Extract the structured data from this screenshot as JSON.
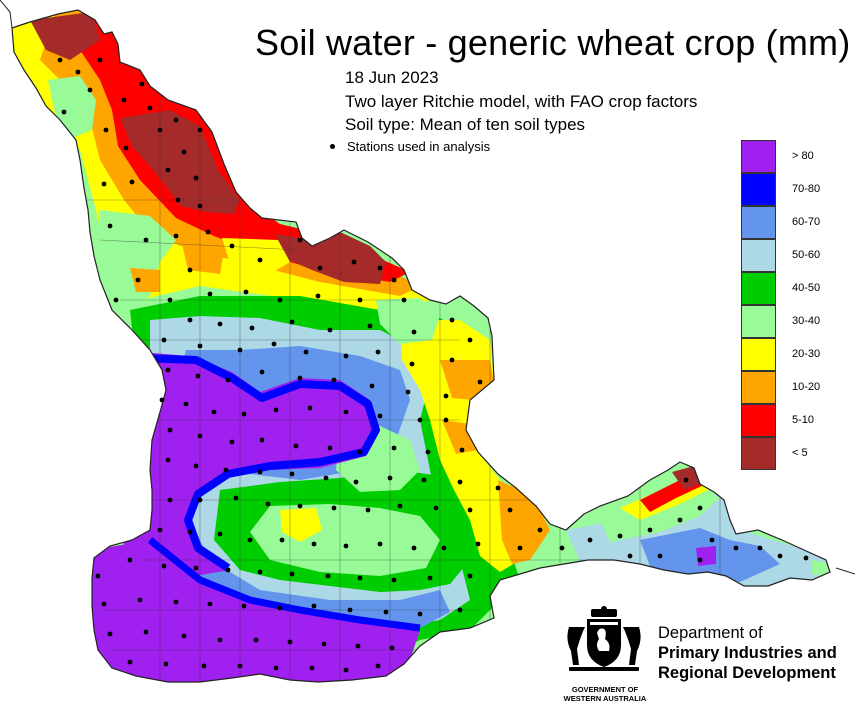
{
  "title": "Soil water - generic wheat crop (mm)",
  "date": "18 Jun 2023",
  "model": "Two layer Ritchie model, with FAO crop factors",
  "soil_type": "Soil type: Mean of ten soil types",
  "stations_note": "Stations used in analysis",
  "legend": [
    {
      "label": "> 80",
      "color": "#a020f0"
    },
    {
      "label": "70-80",
      "color": "#0000ff"
    },
    {
      "label": "60-70",
      "color": "#6495ed"
    },
    {
      "label": "50-60",
      "color": "#add8e6"
    },
    {
      "label": "40-50",
      "color": "#00cd00"
    },
    {
      "label": "30-40",
      "color": "#98fb98"
    },
    {
      "label": "20-30",
      "color": "#ffff00"
    },
    {
      "label": "10-20",
      "color": "#ffa500"
    },
    {
      "label": "5-10",
      "color": "#ff0000"
    },
    {
      "label": "< 5",
      "color": "#a52a2a"
    }
  ],
  "department": {
    "line1": "Department of",
    "line2": "Primary Industries and",
    "line3": "Regional Development"
  },
  "government": {
    "line1": "GOVERNMENT OF",
    "line2": "WESTERN AUSTRALIA"
  }
}
